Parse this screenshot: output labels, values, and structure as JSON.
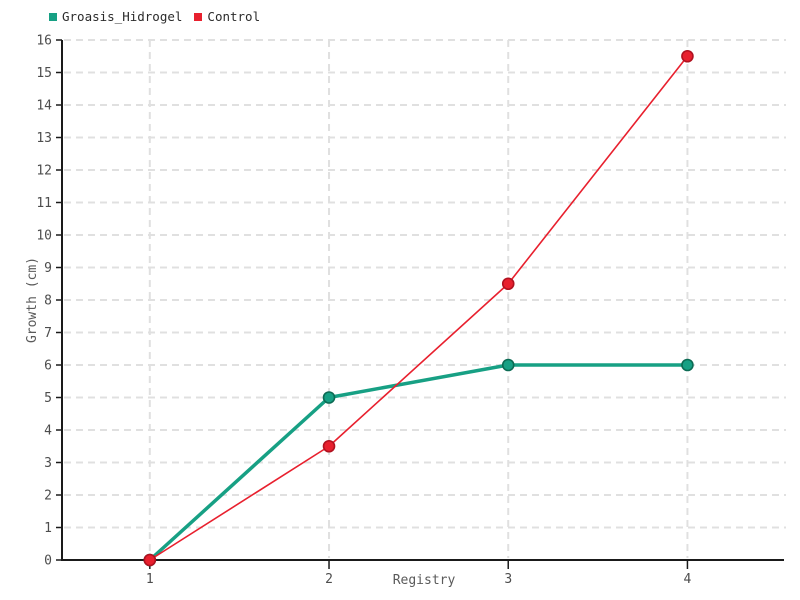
{
  "chart_data": {
    "type": "line",
    "title": "",
    "xlabel": "Registry",
    "ylabel": "Growth (cm)",
    "x": [
      1,
      2,
      3,
      4
    ],
    "series": [
      {
        "name": "Groasis_Hidrogel",
        "values": [
          0,
          5,
          6,
          6
        ],
        "color": "#17a084",
        "marker_edge": "#0c6b54"
      },
      {
        "name": "Control",
        "values": [
          0,
          3.5,
          8.5,
          15.5
        ],
        "color": "#e8202e",
        "marker_edge": "#b01220"
      }
    ],
    "xlim": [
      0.51,
      4.55
    ],
    "ylim": [
      0,
      16
    ],
    "xticks": [
      1,
      2,
      3,
      4
    ],
    "yticks": [
      0,
      1,
      2,
      3,
      4,
      5,
      6,
      7,
      8,
      9,
      10,
      11,
      12,
      13,
      14,
      15,
      16
    ],
    "grid": true,
    "grid_style": "dashed",
    "legend_position": "top-left"
  },
  "colors": {
    "background": "#ffffff",
    "grid": "#e0e0e0",
    "axis": "#1a1a1a",
    "tick_label": "#4d4d4d",
    "axis_label": "#5a5a5a",
    "legend_text": "#2b2b2b"
  }
}
